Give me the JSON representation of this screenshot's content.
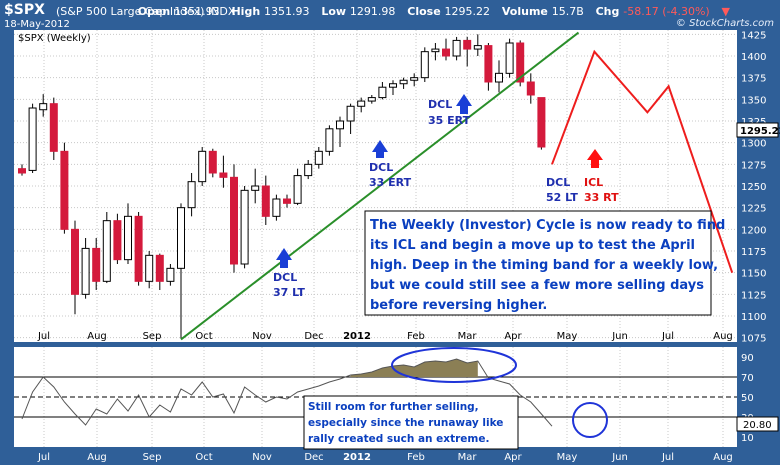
{
  "header": {
    "symbol": "$SPX",
    "name": "(S&P 500 Large Cap Index)",
    "exchange": "INDX",
    "date": "18-May-2012",
    "open_label": "Open",
    "open": "1351.93",
    "high_label": "High",
    "high": "1351.93",
    "low_label": "Low",
    "low": "1291.98",
    "close_label": "Close",
    "close": "1295.22",
    "volume_label": "Volume",
    "volume": "15.7B",
    "chg_label": "Chg",
    "chg": "-58.17 (-4.30%)",
    "copyright": "© StockCharts.com"
  },
  "colors": {
    "background": "#2f5f98",
    "panel": "#ffffff",
    "grid": "#c8c8c8",
    "up_candle": "#ffffff",
    "down_candle": "#d41a3c",
    "trendline": "#2a8f2a",
    "projection": "#ee1d1d",
    "dcl_arrow": "#1a3fd6",
    "icl_arrow": "#ff1010",
    "rsi_line": "#555555",
    "rsi_fill_high": "#8b7f55",
    "rsi_fill_low": "#8c4a66",
    "callout_text": "#0a3fbf",
    "highlight_ellipse": "#1f34d8"
  },
  "chart_data": [
    {
      "type": "candlestick",
      "label": "$SPX (Weekly)",
      "price_axis": {
        "min": 1070,
        "max": 1430,
        "ticks": [
          1075,
          1100,
          1125,
          1150,
          1175,
          1200,
          1225,
          1250,
          1275,
          1300,
          1325,
          1350,
          1375,
          1400,
          1425
        ]
      },
      "last_price_label": "1295.22",
      "time_axis": [
        "Jul",
        "Aug",
        "Sep",
        "Oct",
        "Nov",
        "Dec",
        "2012",
        "Feb",
        "Mar",
        "Apr",
        "May",
        "Jun",
        "Jul",
        "Aug"
      ],
      "candles": [
        {
          "o": 1270,
          "h": 1275,
          "l": 1262,
          "c": 1265
        },
        {
          "o": 1268,
          "h": 1345,
          "l": 1265,
          "c": 1340
        },
        {
          "o": 1338,
          "h": 1356,
          "l": 1330,
          "c": 1345
        },
        {
          "o": 1345,
          "h": 1352,
          "l": 1280,
          "c": 1290
        },
        {
          "o": 1290,
          "h": 1300,
          "l": 1195,
          "c": 1200
        },
        {
          "o": 1200,
          "h": 1210,
          "l": 1102,
          "c": 1125
        },
        {
          "o": 1125,
          "h": 1190,
          "l": 1120,
          "c": 1178
        },
        {
          "o": 1178,
          "h": 1190,
          "l": 1130,
          "c": 1140
        },
        {
          "o": 1140,
          "h": 1220,
          "l": 1138,
          "c": 1210
        },
        {
          "o": 1210,
          "h": 1218,
          "l": 1160,
          "c": 1165
        },
        {
          "o": 1165,
          "h": 1230,
          "l": 1160,
          "c": 1215
        },
        {
          "o": 1215,
          "h": 1220,
          "l": 1135,
          "c": 1140
        },
        {
          "o": 1140,
          "h": 1175,
          "l": 1132,
          "c": 1170
        },
        {
          "o": 1170,
          "h": 1172,
          "l": 1130,
          "c": 1140
        },
        {
          "o": 1140,
          "h": 1160,
          "l": 1135,
          "c": 1155
        },
        {
          "o": 1155,
          "h": 1230,
          "l": 1074,
          "c": 1225
        },
        {
          "o": 1225,
          "h": 1265,
          "l": 1215,
          "c": 1255
        },
        {
          "o": 1255,
          "h": 1295,
          "l": 1250,
          "c": 1290
        },
        {
          "o": 1290,
          "h": 1293,
          "l": 1260,
          "c": 1265
        },
        {
          "o": 1265,
          "h": 1285,
          "l": 1248,
          "c": 1260
        },
        {
          "o": 1260,
          "h": 1275,
          "l": 1150,
          "c": 1160
        },
        {
          "o": 1160,
          "h": 1250,
          "l": 1155,
          "c": 1245
        },
        {
          "o": 1245,
          "h": 1270,
          "l": 1230,
          "c": 1250
        },
        {
          "o": 1250,
          "h": 1262,
          "l": 1205,
          "c": 1215
        },
        {
          "o": 1215,
          "h": 1240,
          "l": 1210,
          "c": 1235
        },
        {
          "o": 1235,
          "h": 1240,
          "l": 1225,
          "c": 1230
        },
        {
          "o": 1230,
          "h": 1270,
          "l": 1228,
          "c": 1262
        },
        {
          "o": 1262,
          "h": 1280,
          "l": 1258,
          "c": 1275
        },
        {
          "o": 1275,
          "h": 1295,
          "l": 1270,
          "c": 1290
        },
        {
          "o": 1290,
          "h": 1320,
          "l": 1285,
          "c": 1316
        },
        {
          "o": 1316,
          "h": 1330,
          "l": 1295,
          "c": 1325
        },
        {
          "o": 1325,
          "h": 1345,
          "l": 1310,
          "c": 1342
        },
        {
          "o": 1342,
          "h": 1352,
          "l": 1335,
          "c": 1348
        },
        {
          "o": 1348,
          "h": 1355,
          "l": 1345,
          "c": 1352
        },
        {
          "o": 1352,
          "h": 1370,
          "l": 1350,
          "c": 1364
        },
        {
          "o": 1364,
          "h": 1372,
          "l": 1355,
          "c": 1368
        },
        {
          "o": 1368,
          "h": 1375,
          "l": 1362,
          "c": 1372
        },
        {
          "o": 1372,
          "h": 1380,
          "l": 1365,
          "c": 1375
        },
        {
          "o": 1375,
          "h": 1410,
          "l": 1370,
          "c": 1405
        },
        {
          "o": 1405,
          "h": 1415,
          "l": 1395,
          "c": 1408
        },
        {
          "o": 1408,
          "h": 1420,
          "l": 1395,
          "c": 1400
        },
        {
          "o": 1400,
          "h": 1422,
          "l": 1395,
          "c": 1418
        },
        {
          "o": 1418,
          "h": 1422,
          "l": 1388,
          "c": 1408
        },
        {
          "o": 1408,
          "h": 1425,
          "l": 1400,
          "c": 1412
        },
        {
          "o": 1412,
          "h": 1415,
          "l": 1360,
          "c": 1370
        },
        {
          "o": 1370,
          "h": 1395,
          "l": 1358,
          "c": 1380
        },
        {
          "o": 1380,
          "h": 1420,
          "l": 1375,
          "c": 1415
        },
        {
          "o": 1415,
          "h": 1418,
          "l": 1365,
          "c": 1370
        },
        {
          "o": 1370,
          "h": 1380,
          "l": 1345,
          "c": 1355
        },
        {
          "o": 1352,
          "h": 1352,
          "l": 1292,
          "c": 1295
        }
      ],
      "cycle_labels": [
        {
          "name": "DCL",
          "detail": "37 LT",
          "color": "blue"
        },
        {
          "name": "DCL",
          "detail": "33 ERT",
          "color": "blue"
        },
        {
          "name": "DCL",
          "detail": "35 ERT",
          "color": "blue"
        },
        {
          "name": "DCL",
          "detail": "52 LT",
          "color": "blue"
        },
        {
          "name": "ICL",
          "detail": "33 RT",
          "color": "red"
        }
      ],
      "trendline": [
        {
          "candle": 15,
          "price": 1073
        },
        {
          "candle": 52.5,
          "price": 1427
        }
      ],
      "projection_path": [
        {
          "candle": 50,
          "price": 1275
        },
        {
          "candle": 54,
          "price": 1405
        },
        {
          "candle": 59,
          "price": 1335
        },
        {
          "candle": 61,
          "price": 1365
        },
        {
          "candle": 67,
          "price": 1150
        }
      ],
      "annotation_lines": [
        "The Weekly (Investor) Cycle is now ready to find",
        "its ICL and begin a move up to test the April",
        "high.  Deep in the timing band for a weekly low,",
        "but we could still see a few more selling days",
        "before reversing higher."
      ]
    },
    {
      "type": "line",
      "label": "RSI",
      "y_axis": {
        "min": 0,
        "max": 100,
        "ticks": [
          10,
          30,
          50,
          70,
          90
        ]
      },
      "reference_lines": [
        30,
        50,
        70
      ],
      "last_value_label": "20.80",
      "values": [
        28,
        55,
        70,
        60,
        45,
        33,
        22,
        38,
        33,
        48,
        36,
        52,
        30,
        42,
        35,
        58,
        52,
        65,
        50,
        53,
        34,
        60,
        52,
        45,
        50,
        48,
        55,
        58,
        61,
        65,
        68,
        72,
        73,
        75,
        79,
        81,
        82,
        80,
        85,
        86,
        85,
        88,
        84,
        86,
        69,
        66,
        63,
        52,
        45,
        33,
        20.8
      ],
      "annotation_lines": [
        "Still room for further selling,",
        "especially since the runaway like",
        "rally created such an extreme."
      ]
    }
  ]
}
